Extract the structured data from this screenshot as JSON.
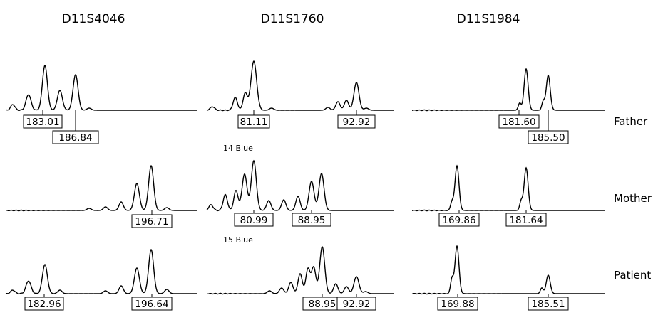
{
  "chart_data": {
    "type": "line",
    "markers": [
      "D11S4046",
      "D11S1760",
      "D11S1984"
    ],
    "individuals": [
      "Father",
      "Mother",
      "Patient"
    ],
    "notes": [
      {
        "text": "14 Blue",
        "above": "Mother",
        "marker": "D11S1760"
      },
      {
        "text": "15 Blue",
        "above": "Patient",
        "marker": "D11S1760"
      }
    ],
    "panels": [
      {
        "marker": "D11S4046",
        "individual": "Father",
        "peak_labels": [
          "183.01",
          "186.84"
        ],
        "peaks": [
          183.01,
          186.84
        ]
      },
      {
        "marker": "D11S1760",
        "individual": "Father",
        "peak_labels": [
          "81.11",
          "92.92"
        ],
        "peaks": [
          81.11,
          92.92
        ]
      },
      {
        "marker": "D11S1984",
        "individual": "Father",
        "peak_labels": [
          "181.60",
          "185.50"
        ],
        "peaks": [
          181.6,
          185.5
        ]
      },
      {
        "marker": "D11S4046",
        "individual": "Mother",
        "peak_labels": [
          "196.71"
        ],
        "peaks": [
          196.71
        ]
      },
      {
        "marker": "D11S1760",
        "individual": "Mother",
        "peak_labels": [
          "80.99",
          "88.95"
        ],
        "peaks": [
          80.99,
          88.95
        ]
      },
      {
        "marker": "D11S1984",
        "individual": "Mother",
        "peak_labels": [
          "169.86",
          "181.64"
        ],
        "peaks": [
          169.86,
          181.64
        ]
      },
      {
        "marker": "D11S4046",
        "individual": "Patient",
        "peak_labels": [
          "182.96",
          "196.64"
        ],
        "peaks": [
          182.96,
          196.64
        ]
      },
      {
        "marker": "D11S1760",
        "individual": "Patient",
        "peak_labels": [
          "88.95",
          "92.92"
        ],
        "peaks": [
          88.95,
          92.92
        ]
      },
      {
        "marker": "D11S1984",
        "individual": "Patient",
        "peak_labels": [
          "169.88",
          "185.51"
        ],
        "peaks": [
          169.88,
          185.51
        ]
      }
    ]
  }
}
